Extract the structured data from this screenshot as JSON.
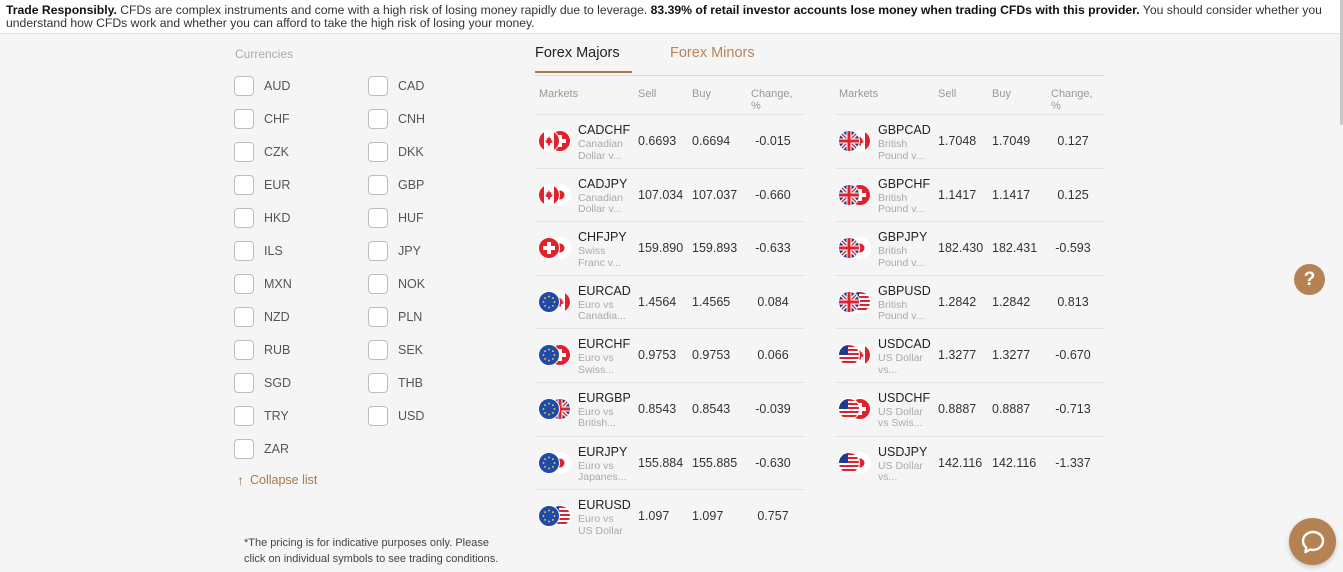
{
  "banner": {
    "bold_lead": "Trade Responsibly.",
    "text1": " CFDs are complex instruments and come with a high risk of losing money rapidly due to leverage. ",
    "bold_stat": "83.39% of retail investor accounts lose money when trading CFDs with this provider.",
    "text2": " You should consider whether you understand how CFDs work and whether you can afford to take the high risk of losing your money."
  },
  "currencies": {
    "title": "Currencies",
    "items": [
      "AUD",
      "CAD",
      "CHF",
      "CNH",
      "CZK",
      "DKK",
      "EUR",
      "GBP",
      "HKD",
      "HUF",
      "ILS",
      "JPY",
      "MXN",
      "NOK",
      "NZD",
      "PLN",
      "RUB",
      "SEK",
      "SGD",
      "THB",
      "TRY",
      "USD",
      "ZAR"
    ],
    "collapse_label": "Collapse list"
  },
  "footnote": "*The pricing is for indicative purposes only. Please click on individual symbols to see trading conditions.",
  "tabs": [
    {
      "label": "Forex Majors",
      "active": true
    },
    {
      "label": "Forex Minors",
      "active": false
    }
  ],
  "table_headers": {
    "markets": "Markets",
    "sell": "Sell",
    "buy": "Buy",
    "change": "Change, %"
  },
  "markets_left": [
    {
      "symbol": "CADCHF",
      "desc": "Canadian Dollar v...",
      "sell": "0.6693",
      "buy": "0.6694",
      "change": "-0.015",
      "flags": [
        "ca",
        "ch"
      ]
    },
    {
      "symbol": "CADJPY",
      "desc": "Canadian Dollar v...",
      "sell": "107.034",
      "buy": "107.037",
      "change": "-0.660",
      "flags": [
        "ca",
        "jp"
      ]
    },
    {
      "symbol": "CHFJPY",
      "desc": "Swiss Franc v...",
      "sell": "159.890",
      "buy": "159.893",
      "change": "-0.633",
      "flags": [
        "ch",
        "jp"
      ]
    },
    {
      "symbol": "EURCAD",
      "desc": "Euro vs Canadia...",
      "sell": "1.4564",
      "buy": "1.4565",
      "change": "0.084",
      "flags": [
        "eu",
        "ca"
      ]
    },
    {
      "symbol": "EURCHF",
      "desc": "Euro vs Swiss...",
      "sell": "0.9753",
      "buy": "0.9753",
      "change": "0.066",
      "flags": [
        "eu",
        "ch"
      ]
    },
    {
      "symbol": "EURGBP",
      "desc": "Euro vs British...",
      "sell": "0.8543",
      "buy": "0.8543",
      "change": "-0.039",
      "flags": [
        "eu",
        "gb"
      ]
    },
    {
      "symbol": "EURJPY",
      "desc": "Euro vs Japanes...",
      "sell": "155.884",
      "buy": "155.885",
      "change": "-0.630",
      "flags": [
        "eu",
        "jp"
      ]
    },
    {
      "symbol": "EURUSD",
      "desc": "Euro vs US Dollar",
      "sell": "1.097",
      "buy": "1.097",
      "change": "0.757",
      "flags": [
        "eu",
        "us"
      ]
    }
  ],
  "markets_right": [
    {
      "symbol": "GBPCAD",
      "desc": "British Pound v...",
      "sell": "1.7048",
      "buy": "1.7049",
      "change": "0.127",
      "flags": [
        "gb",
        "ca"
      ]
    },
    {
      "symbol": "GBPCHF",
      "desc": "British Pound v...",
      "sell": "1.1417",
      "buy": "1.1417",
      "change": "0.125",
      "flags": [
        "gb",
        "ch"
      ]
    },
    {
      "symbol": "GBPJPY",
      "desc": "British Pound v...",
      "sell": "182.430",
      "buy": "182.431",
      "change": "-0.593",
      "flags": [
        "gb",
        "jp"
      ]
    },
    {
      "symbol": "GBPUSD",
      "desc": "British Pound v...",
      "sell": "1.2842",
      "buy": "1.2842",
      "change": "0.813",
      "flags": [
        "gb",
        "us"
      ]
    },
    {
      "symbol": "USDCAD",
      "desc": "US Dollar vs...",
      "sell": "1.3277",
      "buy": "1.3277",
      "change": "-0.670",
      "flags": [
        "us",
        "ca"
      ]
    },
    {
      "symbol": "USDCHF",
      "desc": "US Dollar vs Swis...",
      "sell": "0.8887",
      "buy": "0.8887",
      "change": "-0.713",
      "flags": [
        "us",
        "ch"
      ]
    },
    {
      "symbol": "USDJPY",
      "desc": "US Dollar vs...",
      "sell": "142.116",
      "buy": "142.116",
      "change": "-1.337",
      "flags": [
        "us",
        "jp"
      ]
    }
  ],
  "help_button": {
    "label": "?",
    "icon": "question-icon"
  },
  "chat_button": {
    "icon": "chat-icon"
  },
  "colors": {
    "accent": "#b58254",
    "tab_underline": "#a47a4f"
  }
}
